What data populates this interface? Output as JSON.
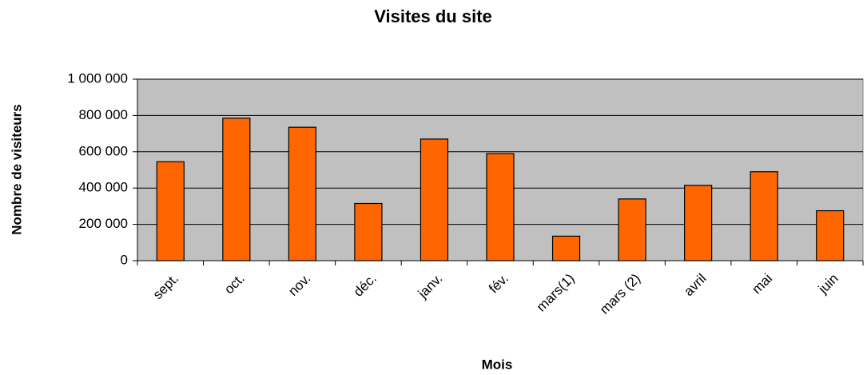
{
  "chart_data": {
    "type": "bar",
    "title": "Visites du site",
    "x_label": "Mois",
    "y_label": "Nombre de visiteurs",
    "categories": [
      "sept.",
      "oct.",
      "nov.",
      "déc.",
      "janv.",
      "fév.",
      "mars(1)",
      "mars (2)",
      "avril",
      "mai",
      "juin"
    ],
    "values": [
      545000,
      785000,
      735000,
      315000,
      670000,
      590000,
      135000,
      340000,
      415000,
      490000,
      275000
    ],
    "color": "#ff6600",
    "ylim": [
      0,
      1000000
    ],
    "yticks": [
      0,
      {
        "value": 200000,
        "label": "200 000"
      },
      {
        "value": 400000,
        "label": "400 000"
      },
      {
        "value": 600000,
        "label": "600 000"
      },
      {
        "value": 800000,
        "label": "800 000"
      },
      {
        "value": 1000000,
        "label": "1 000 000"
      }
    ],
    "grid": true
  }
}
